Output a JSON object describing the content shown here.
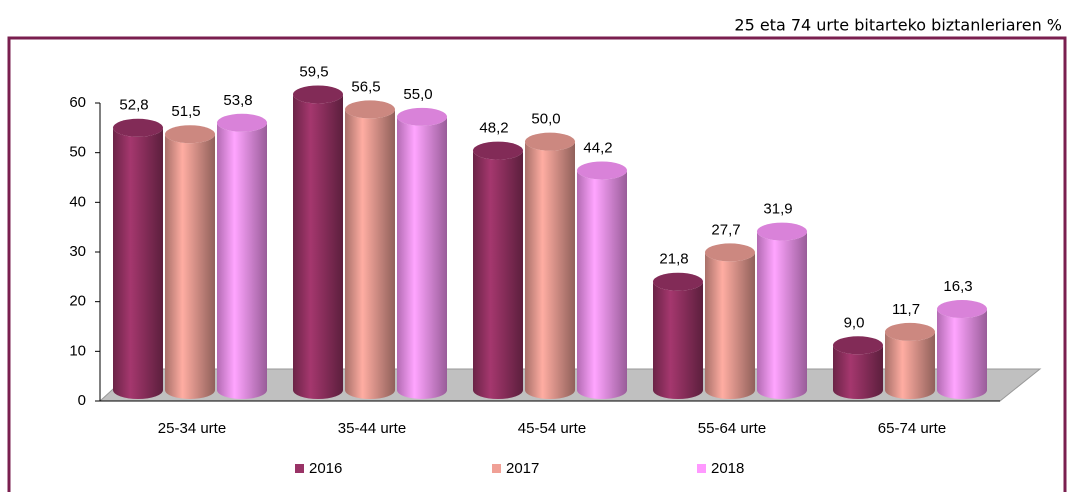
{
  "chart_data": {
    "type": "bar",
    "subtitle": "25 eta 74 urte bitarteko biztanleriaren %",
    "categories": [
      "25-34 urte",
      "35-44 urte",
      "45-54 urte",
      "55-64 urte",
      "65-74 urte"
    ],
    "series": [
      {
        "name": "2016",
        "color": "#993366",
        "values": [
          52.8,
          59.5,
          48.2,
          21.8,
          9.0
        ],
        "value_labels": [
          "52,8",
          "59,5",
          "48,2",
          "21,8",
          "9,0"
        ]
      },
      {
        "name": "2017",
        "color": "#f0a096",
        "values": [
          51.5,
          56.5,
          50.0,
          27.7,
          11.7
        ],
        "value_labels": [
          "51,5",
          "56,5",
          "50,0",
          "27,7",
          "11,7"
        ]
      },
      {
        "name": "2018",
        "color": "#ff99ff",
        "values": [
          53.8,
          55.0,
          44.2,
          31.9,
          16.3
        ],
        "value_labels": [
          "53,8",
          "55,0",
          "44,2",
          "31,9",
          "16,3"
        ]
      }
    ],
    "ylim": [
      0,
      60
    ],
    "yticks": [
      0,
      10,
      20,
      30,
      40,
      50,
      60
    ],
    "grid": false,
    "legend": "bottom"
  }
}
